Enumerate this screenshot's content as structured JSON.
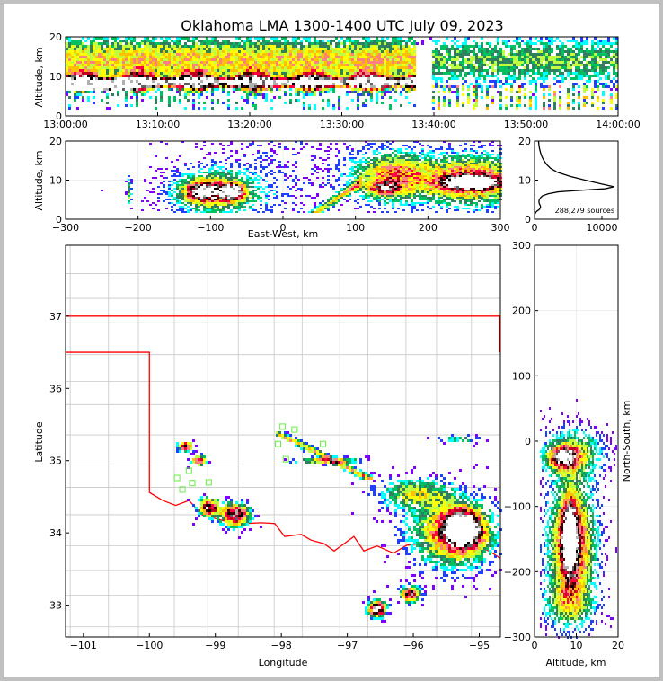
{
  "title": "Oklahoma LMA 1300-1400 UTC July 09, 2023",
  "chart_data": [
    {
      "id": "time-height",
      "type": "heatmap",
      "xlabel": "",
      "ylabel": "Altitude, km",
      "xlim_minutes": [
        0,
        60
      ],
      "ylim": [
        0,
        20
      ],
      "xticks": [
        {
          "v": 0,
          "label": "13:00:00"
        },
        {
          "v": 10,
          "label": "13:10:00"
        },
        {
          "v": 20,
          "label": "13:20:00"
        },
        {
          "v": 30,
          "label": "13:30:00"
        },
        {
          "v": 40,
          "label": "13:40:00"
        },
        {
          "v": 50,
          "label": "13:50:00"
        },
        {
          "v": 60,
          "label": "14:00:00"
        }
      ],
      "yticks": [
        {
          "v": 0,
          "label": "0"
        },
        {
          "v": 10,
          "label": "10"
        },
        {
          "v": 20,
          "label": "20"
        }
      ],
      "core_altitude_km": 8.5,
      "data_gap_minutes": [
        38,
        39.8
      ]
    },
    {
      "id": "ew-altitude",
      "type": "heatmap",
      "xlabel": "East-West, km",
      "ylabel": "Altitude, km",
      "xlim": [
        -300,
        300
      ],
      "ylim": [
        0,
        20
      ],
      "xticks": [
        {
          "v": -300,
          "label": "−300"
        },
        {
          "v": -200,
          "label": "−200"
        },
        {
          "v": -100,
          "label": "−100"
        },
        {
          "v": 0,
          "label": "0"
        },
        {
          "v": 100,
          "label": "100"
        },
        {
          "v": 200,
          "label": "200"
        },
        {
          "v": 300,
          "label": "300"
        }
      ],
      "yticks": [
        {
          "v": 0,
          "label": "0"
        },
        {
          "v": 10,
          "label": "10"
        },
        {
          "v": 20,
          "label": "20"
        }
      ]
    },
    {
      "id": "altitude-histogram",
      "type": "line",
      "xlim": [
        0,
        12400
      ],
      "ylim": [
        0,
        20
      ],
      "xticks": [
        {
          "v": 0,
          "label": "0"
        },
        {
          "v": 10000,
          "label": "10000"
        }
      ],
      "yticks": [
        {
          "v": 0,
          "label": "0"
        },
        {
          "v": 10,
          "label": "10"
        },
        {
          "v": 20,
          "label": "20"
        }
      ],
      "annotation": "288,279 sources",
      "profile": [
        [
          20,
          600
        ],
        [
          19,
          650
        ],
        [
          18,
          750
        ],
        [
          17,
          900
        ],
        [
          16,
          1100
        ],
        [
          15,
          1400
        ],
        [
          14,
          1800
        ],
        [
          13,
          2400
        ],
        [
          12,
          3400
        ],
        [
          11,
          5200
        ],
        [
          10,
          7500
        ],
        [
          9,
          10000
        ],
        [
          8.3,
          11800
        ],
        [
          7.8,
          10500
        ],
        [
          7.3,
          6000
        ],
        [
          7,
          3500
        ],
        [
          6.5,
          2000
        ],
        [
          6,
          1200
        ],
        [
          5.5,
          900
        ],
        [
          5,
          700
        ],
        [
          4.5,
          650
        ],
        [
          4,
          700
        ],
        [
          3.5,
          850
        ],
        [
          3,
          900
        ],
        [
          2.5,
          700
        ],
        [
          2,
          300
        ],
        [
          1.5,
          100
        ],
        [
          1,
          0
        ]
      ]
    },
    {
      "id": "plan-view",
      "type": "heatmap",
      "xlabel": "Longitude",
      "ylabel": "Latitude",
      "xlim": [
        -101.27,
        -94.68
      ],
      "ylim": [
        32.56,
        37.98
      ],
      "xticks": [
        {
          "v": -101,
          "label": "−101"
        },
        {
          "v": -100,
          "label": "−100"
        },
        {
          "v": -99,
          "label": "−99"
        },
        {
          "v": -98,
          "label": "−98"
        },
        {
          "v": -97,
          "label": "−97"
        },
        {
          "v": -96,
          "label": "−96"
        },
        {
          "v": -95,
          "label": "−95"
        }
      ],
      "yticks": [
        {
          "v": 33,
          "label": "33"
        },
        {
          "v": 34,
          "label": "34"
        },
        {
          "v": 35,
          "label": "35"
        },
        {
          "v": 36,
          "label": "36"
        },
        {
          "v": 37,
          "label": "37"
        }
      ],
      "storm_cells": [
        {
          "lon": -95.25,
          "lat": 34.05,
          "w": 1.3,
          "sx": 0.25,
          "sy": 0.22
        },
        {
          "lon": -95.4,
          "lat": 34.0,
          "w": 0.55,
          "sx": 0.6,
          "sy": 0.45
        },
        {
          "lon": -96.55,
          "lat": 32.95,
          "w": 1.0,
          "sx": 0.13,
          "sy": 0.1
        },
        {
          "lon": -96.05,
          "lat": 33.15,
          "w": 0.75,
          "sx": 0.14,
          "sy": 0.1
        },
        {
          "lon": -98.7,
          "lat": 34.25,
          "w": 0.85,
          "sx": 0.2,
          "sy": 0.15
        },
        {
          "lon": -99.1,
          "lat": 34.35,
          "w": 0.8,
          "sx": 0.15,
          "sy": 0.12
        },
        {
          "lon": -99.25,
          "lat": 35.0,
          "w": 0.8,
          "sx": 0.1,
          "sy": 0.06
        },
        {
          "lon": -99.45,
          "lat": 35.2,
          "w": 0.75,
          "sx": 0.1,
          "sy": 0.07
        },
        {
          "lon": -97.3,
          "lat": 35.0,
          "w": 0.5,
          "sx": 0.45,
          "sy": 0.04
        },
        {
          "lon": -96.0,
          "lat": 34.55,
          "w": 0.35,
          "sx": 0.5,
          "sy": 0.2
        },
        {
          "lon": -95.3,
          "lat": 35.3,
          "w": 0.25,
          "sx": 0.3,
          "sy": 0.05
        }
      ],
      "stations": [
        [
          -97.98,
          35.47
        ],
        [
          -97.8,
          35.43
        ],
        [
          -98.05,
          35.23
        ],
        [
          -97.93,
          35.02
        ],
        [
          -97.37,
          35.23
        ],
        [
          -99.58,
          34.76
        ],
        [
          -99.5,
          34.6
        ],
        [
          -99.35,
          34.69
        ],
        [
          -99.1,
          34.7
        ],
        [
          -99.4,
          34.86
        ]
      ],
      "state_border_color": "#ff0000",
      "county_line_color": "#c8c8c8",
      "station_color": "#66ee44"
    },
    {
      "id": "ns-altitude",
      "type": "heatmap",
      "xlabel": "Altitude, km",
      "ylabel": "North-South, km",
      "xlim": [
        0,
        20
      ],
      "ylim": [
        -300,
        300
      ],
      "xticks": [
        {
          "v": 0,
          "label": "0"
        },
        {
          "v": 10,
          "label": "10"
        },
        {
          "v": 20,
          "label": "20"
        }
      ],
      "yticks": [
        {
          "v": -300,
          "label": "−300"
        },
        {
          "v": -200,
          "label": "−200"
        },
        {
          "v": -100,
          "label": "−100"
        },
        {
          "v": 0,
          "label": "0"
        },
        {
          "v": 100,
          "label": "100"
        },
        {
          "v": 200,
          "label": "200"
        },
        {
          "v": 300,
          "label": "300"
        }
      ]
    }
  ]
}
